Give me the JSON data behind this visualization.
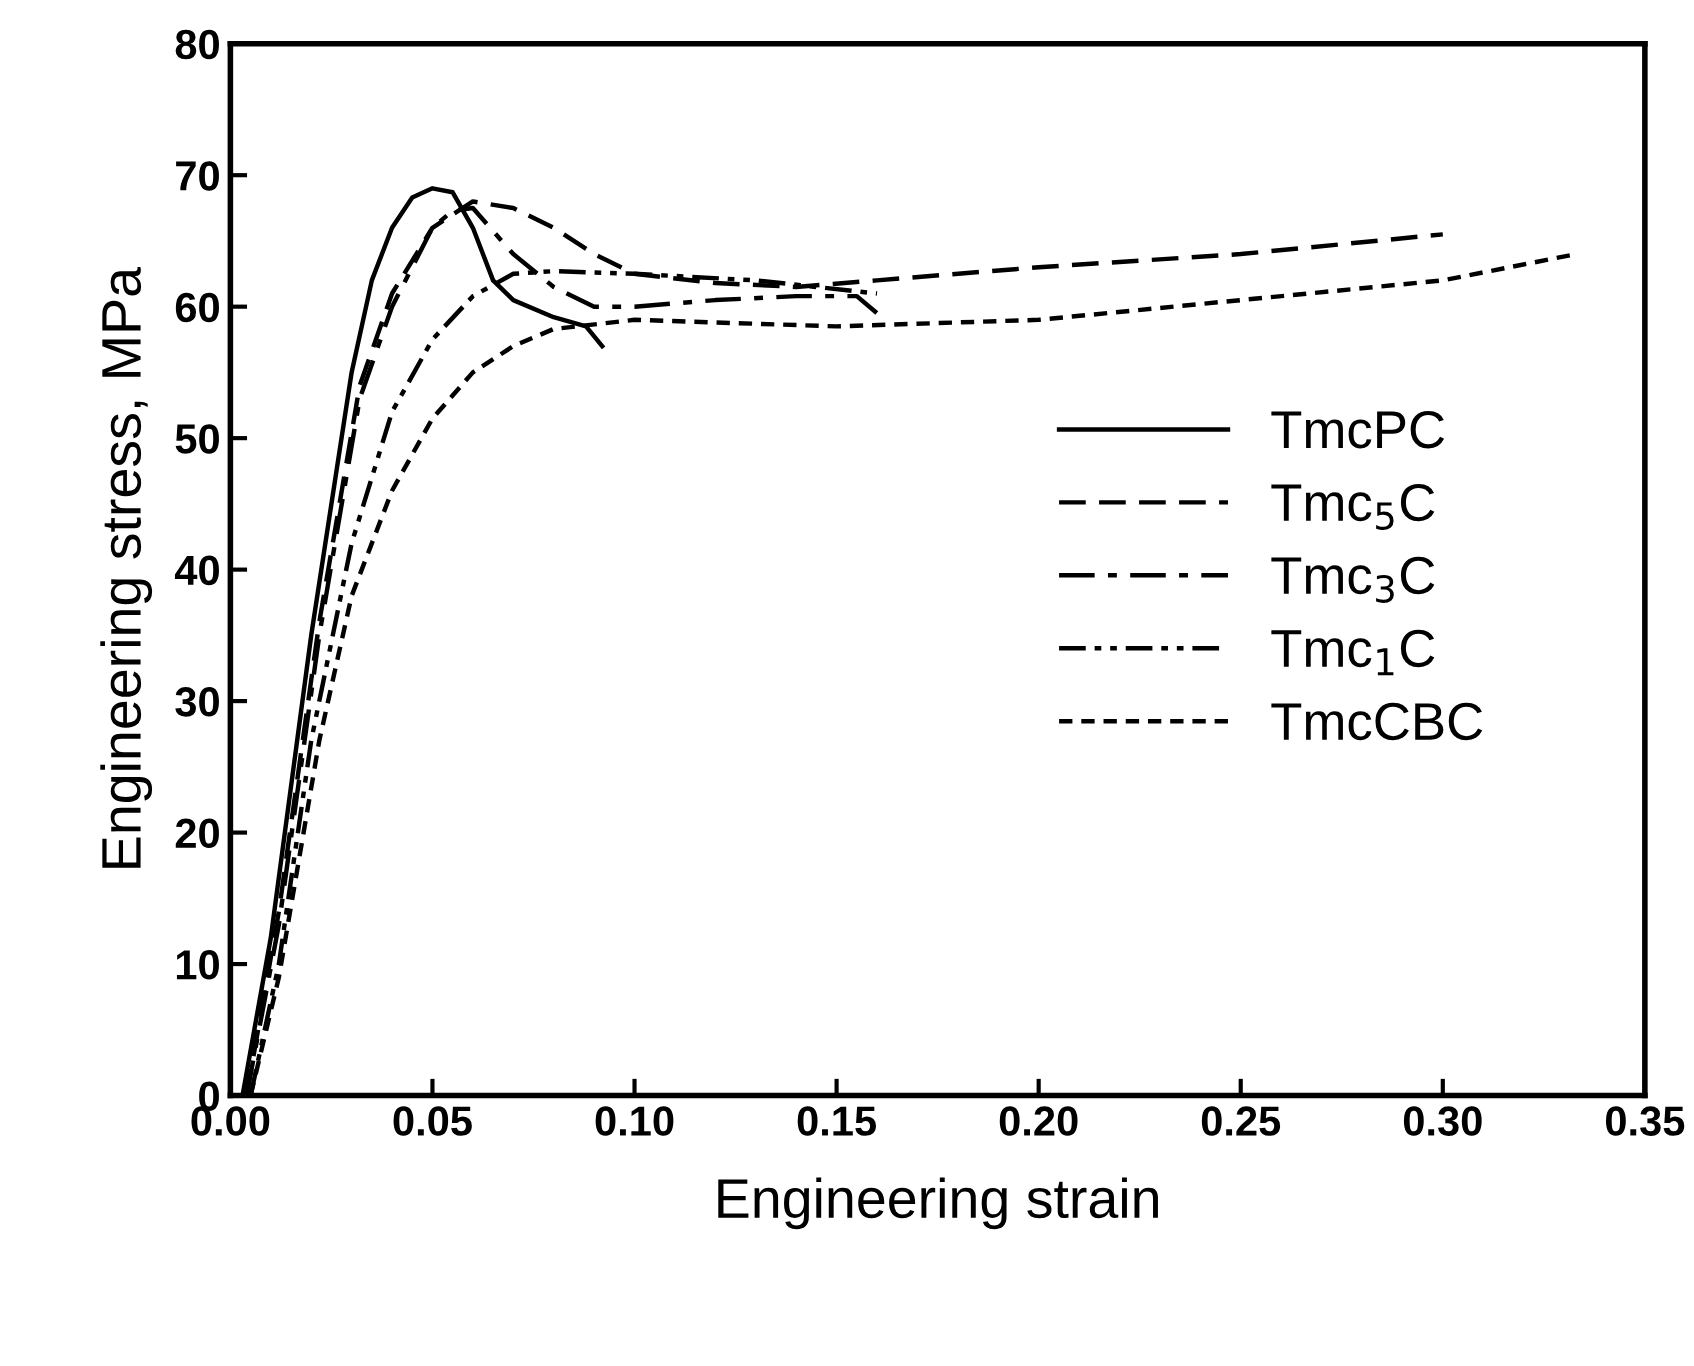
{
  "chart_data": {
    "type": "line",
    "xlabel": "Engineering strain",
    "ylabel": "Engineering stress, MPa",
    "xlim": [
      0,
      0.35
    ],
    "ylim": [
      0,
      80
    ],
    "xticks": [
      {
        "value": 0,
        "label": "0.00"
      },
      {
        "value": 0.05,
        "label": "0.05"
      },
      {
        "value": 0.1,
        "label": "0.10"
      },
      {
        "value": 0.15,
        "label": "0.15"
      },
      {
        "value": 0.2,
        "label": "0.20"
      },
      {
        "value": 0.25,
        "label": "0.25"
      },
      {
        "value": 0.3,
        "label": "0.30"
      },
      {
        "value": 0.35,
        "label": "0.35"
      }
    ],
    "yticks": [
      0,
      10,
      20,
      30,
      40,
      50,
      60,
      70,
      80
    ],
    "grid": false,
    "legend": "right",
    "marker": "none",
    "series": [
      {
        "name": "TmcPC",
        "color": "#000000",
        "line_style": "solid",
        "x": [
          0.003,
          0.01,
          0.02,
          0.03,
          0.035,
          0.04,
          0.045,
          0.05,
          0.055,
          0.06,
          0.065,
          0.07,
          0.08,
          0.088,
          0.092
        ],
        "values": [
          0,
          12,
          35,
          55,
          62,
          66,
          68.3,
          69,
          68.7,
          66,
          62,
          60.5,
          59.2,
          58.5,
          57
        ]
      },
      {
        "name": "Tmc$_{5}$C",
        "color": "#000000",
        "line_style": "dashed",
        "x": [
          0.004,
          0.012,
          0.022,
          0.032,
          0.04,
          0.05,
          0.06,
          0.07,
          0.08,
          0.09,
          0.1,
          0.12,
          0.14,
          0.16,
          0.2,
          0.25,
          0.3
        ],
        "values": [
          0,
          14,
          36,
          54,
          61,
          66,
          68,
          67.5,
          66,
          64,
          62.5,
          61.8,
          61.5,
          62,
          63,
          64,
          65.5
        ]
      },
      {
        "name": "Tmc$_{3}$C",
        "color": "#000000",
        "line_style": "dashdot",
        "x": [
          0.004,
          0.012,
          0.022,
          0.032,
          0.04,
          0.05,
          0.055,
          0.06,
          0.07,
          0.08,
          0.09,
          0.1,
          0.12,
          0.14,
          0.155,
          0.16
        ],
        "values": [
          0,
          13,
          35,
          53,
          60,
          66,
          67.3,
          67.5,
          64,
          61.5,
          60,
          60,
          60.5,
          60.8,
          60.8,
          59.5
        ]
      },
      {
        "name": "Tmc$_{1}$C",
        "color": "#000000",
        "line_style": "dashdotdot",
        "x": [
          0.005,
          0.012,
          0.02,
          0.03,
          0.04,
          0.05,
          0.06,
          0.07,
          0.08,
          0.1,
          0.13,
          0.16
        ],
        "values": [
          0,
          10,
          27,
          42,
          52,
          57.5,
          60.8,
          62.5,
          62.7,
          62.5,
          62,
          61
        ]
      },
      {
        "name": "TmcCBC",
        "color": "#000000",
        "line_style": "dotted",
        "x": [
          0.005,
          0.012,
          0.022,
          0.03,
          0.04,
          0.05,
          0.06,
          0.07,
          0.08,
          0.1,
          0.12,
          0.15,
          0.2,
          0.25,
          0.3,
          0.333
        ],
        "values": [
          0,
          9,
          27,
          38,
          46,
          51.5,
          55,
          57,
          58.3,
          59,
          58.8,
          58.5,
          59,
          60.5,
          62,
          64
        ]
      }
    ]
  }
}
